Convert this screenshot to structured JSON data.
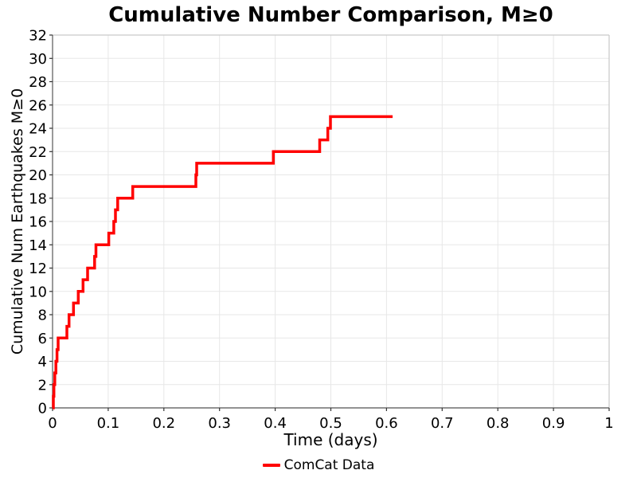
{
  "chart_data": {
    "type": "line",
    "subtype": "cumulative-step",
    "title": "Cumulative Number Comparison, M≥0",
    "xlabel": "Time (days)",
    "ylabel": "Cumulative Num Earthquakes M≥0",
    "xlim": [
      0,
      1
    ],
    "ylim": [
      0,
      32
    ],
    "grid": true,
    "background": "#ffffff",
    "xticks": [
      0,
      0.1,
      0.2,
      0.3,
      0.4,
      0.5,
      0.6,
      0.7,
      0.8,
      0.9,
      1
    ],
    "xtick_labels": [
      "0",
      "0.1",
      "0.2",
      "0.3",
      "0.4",
      "0.5",
      "0.6",
      "0.7",
      "0.8",
      "0.9",
      "1"
    ],
    "yticks": [
      0,
      2,
      4,
      6,
      8,
      10,
      12,
      14,
      16,
      18,
      20,
      22,
      24,
      26,
      28,
      30,
      32
    ],
    "ytick_labels": [
      "0",
      "2",
      "4",
      "6",
      "8",
      "10",
      "12",
      "14",
      "16",
      "18",
      "20",
      "22",
      "24",
      "26",
      "28",
      "30",
      "32"
    ],
    "legend": {
      "position": "bottom-center",
      "entries": [
        {
          "label": "ComCat Data",
          "color": "#ff0000"
        }
      ]
    },
    "series": [
      {
        "name": "ComCat Data",
        "color": "#ff0000",
        "line_width": 3.5,
        "step_mode": "post",
        "x_start": 0,
        "y_start": 0,
        "event_times": [
          0.0015,
          0.0025,
          0.004,
          0.006,
          0.008,
          0.01,
          0.0257,
          0.0296,
          0.0376,
          0.0462,
          0.0548,
          0.063,
          0.0755,
          0.078,
          0.101,
          0.11,
          0.113,
          0.117,
          0.144,
          0.2575,
          0.259,
          0.3967,
          0.48,
          0.4946,
          0.4993
        ],
        "counts": [
          1,
          2,
          3,
          4,
          5,
          6,
          7,
          8,
          9,
          10,
          11,
          12,
          13,
          14,
          15,
          16,
          17,
          18,
          19,
          20,
          21,
          22,
          23,
          24,
          25
        ],
        "x_end": 0.611,
        "final_count": 25
      }
    ]
  }
}
